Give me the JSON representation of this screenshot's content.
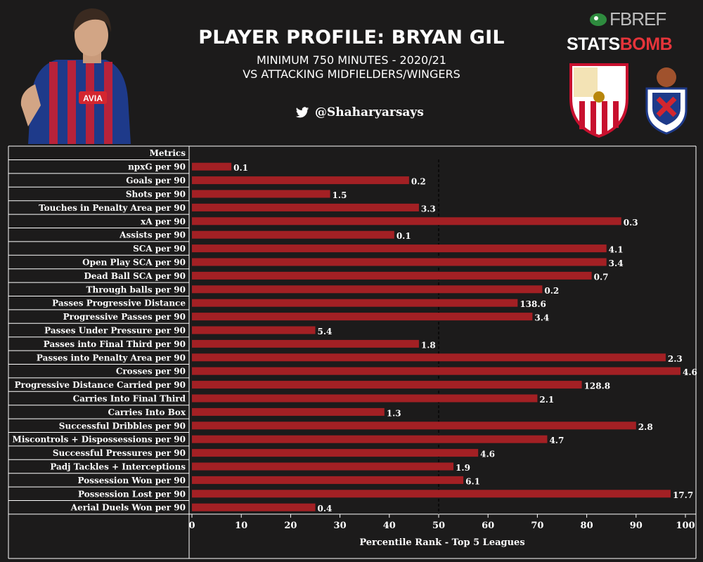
{
  "header": {
    "title": "PLAYER PROFILE: BRYAN GIL",
    "subtitle_line1": "MINIMUM 750 MINUTES - 2020/21",
    "subtitle_line2": "VS ATTACKING MIDFIELDERS/WINGERS",
    "twitter_handle": "@Shaharyarsays",
    "fbref_logo": "FBREF",
    "statsbomb_stats": "STATS",
    "statsbomb_bomb": "BOMB"
  },
  "colors": {
    "bar": "#a32024",
    "background": "#1c1b1b",
    "grid_line": "#ffffff",
    "midline": "#000000"
  },
  "icons": [
    "player-photo",
    "twitter-icon",
    "fbref-logo",
    "statsbomb-logo",
    "sevilla-crest",
    "eibar-crest"
  ],
  "chart_data": {
    "type": "bar",
    "orientation": "horizontal",
    "column_header": "Metrics",
    "xlabel": "Percentile Rank - Top 5 Leagues",
    "xlim": [
      0,
      100
    ],
    "x_ticks": [
      0,
      10,
      20,
      30,
      40,
      50,
      60,
      70,
      80,
      90,
      100
    ],
    "reference_line": 50,
    "categories": [
      "npxG per 90",
      "Goals per 90",
      "Shots per 90",
      "Touches in Penalty Area per 90",
      "xA per 90",
      "Assists per 90",
      "SCA per 90",
      "Open Play SCA per 90",
      "Dead Ball SCA per 90",
      "Through balls per 90",
      "Passes Progressive Distance",
      "Progressive Passes per 90",
      "Passes Under Pressure per 90",
      "Passes into Final Third per 90",
      "Passes into Penalty Area per 90",
      "Crosses per 90",
      "Progressive Distance Carried per 90",
      "Carries Into Final Third",
      "Carries Into Box",
      "Successful Dribbles per 90",
      "Miscontrols + Dispossessions per 90",
      "Successful Pressures per 90",
      "Padj Tackles + Interceptions",
      "Possession Won per 90",
      "Possession Lost per 90",
      "Aerial Duels Won per 90"
    ],
    "percentiles": [
      8,
      44,
      28,
      46,
      87,
      41,
      84,
      84,
      81,
      71,
      66,
      69,
      25,
      46,
      96,
      99,
      79,
      70,
      39,
      90,
      72,
      58,
      53,
      55,
      97,
      25
    ],
    "value_labels": [
      "0.1",
      "0.2",
      "1.5",
      "3.3",
      "0.3",
      "0.1",
      "4.1",
      "3.4",
      "0.7",
      "0.2",
      "138.6",
      "3.4",
      "5.4",
      "1.8",
      "2.3",
      "4.6",
      "128.8",
      "2.1",
      "1.3",
      "2.8",
      "4.7",
      "4.6",
      "1.9",
      "6.1",
      "17.7",
      "0.4"
    ]
  }
}
